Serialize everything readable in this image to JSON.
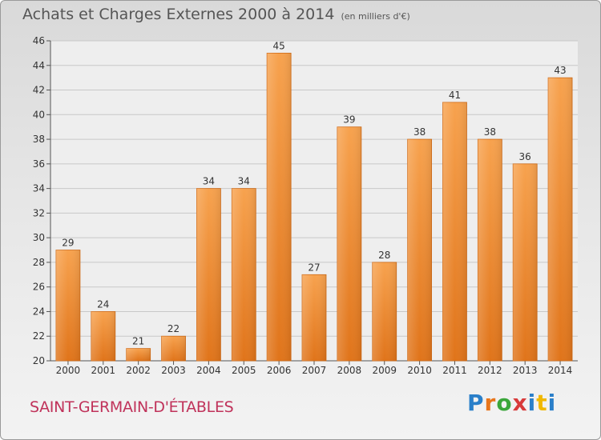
{
  "title": "Achats et Charges Externes 2000 à 2014",
  "unit": "(en milliers d'€)",
  "location": "SAINT-GERMAIN-D'ÉTABLES",
  "logo": {
    "letters": [
      "P",
      "r",
      "o",
      "x",
      "i",
      "t",
      "i"
    ],
    "colors": [
      "#2a7fc9",
      "#e8751a",
      "#3aa63a",
      "#d83a3a",
      "#2a7fc9",
      "#f0b800",
      "#2a7fc9"
    ]
  },
  "chart_data": {
    "type": "bar",
    "categories": [
      "2000",
      "2001",
      "2002",
      "2003",
      "2004",
      "2005",
      "2006",
      "2007",
      "2008",
      "2009",
      "2010",
      "2011",
      "2012",
      "2013",
      "2014"
    ],
    "values": [
      29,
      24,
      21,
      22,
      34,
      34,
      45,
      27,
      39,
      28,
      38,
      41,
      38,
      36,
      43
    ],
    "ylim": [
      20,
      46
    ],
    "yticks": [
      20,
      22,
      24,
      26,
      28,
      30,
      32,
      34,
      36,
      38,
      40,
      42,
      44,
      46
    ],
    "grid": true,
    "bar_color": "#f08a2a"
  }
}
